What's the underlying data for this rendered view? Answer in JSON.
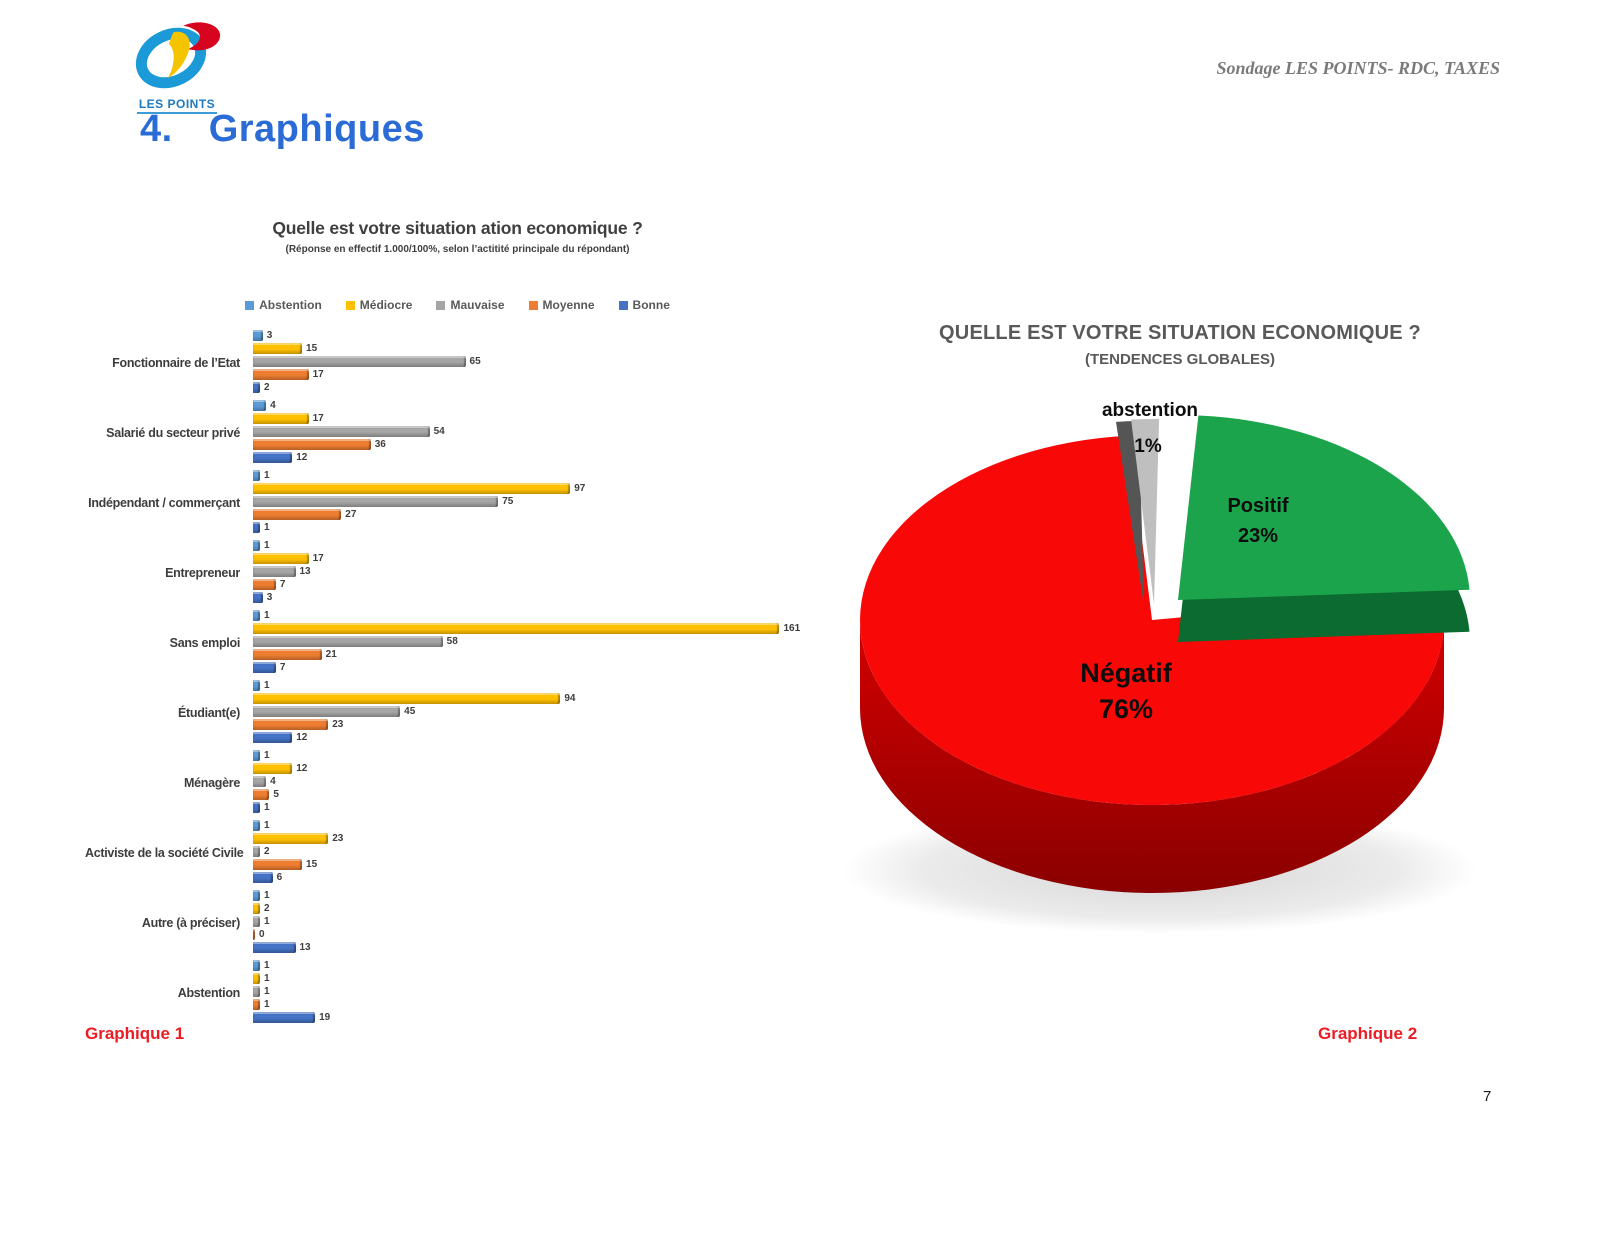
{
  "header": {
    "logo_text": "LES POINTS",
    "running_title": "Sondage LES POINTS- RDC, TAXES",
    "section_number": "4.",
    "section_title": "Graphiques"
  },
  "captions": {
    "graphique1": "Graphique 1",
    "graphique2": "Graphique 2"
  },
  "page_number": "7",
  "chart_data": [
    {
      "type": "bar",
      "orientation": "horizontal",
      "title": "Quelle est votre situation ation economique ?",
      "subtitle": "(Réponse en effectif 1.000/100%, selon l’actitité principale du répondant)",
      "legend_position": "top",
      "xlim": [
        0,
        170
      ],
      "categories": [
        "Fonctionnaire de l’Etat",
        "Salarié du secteur privé",
        "Indépendant / commerçant",
        "Entrepreneur",
        "Sans emploi",
        "Étudiant(e)",
        "Ménagère",
        "Activiste de la société Civile",
        "Autre (à préciser)",
        "Abstention"
      ],
      "series": [
        {
          "name": "Abstention",
          "color": "#5B9BD5",
          "values": [
            3,
            4,
            1,
            1,
            1,
            1,
            1,
            1,
            1,
            1
          ]
        },
        {
          "name": "Médiocre",
          "color": "#FFC000",
          "values": [
            15,
            17,
            97,
            17,
            161,
            94,
            12,
            23,
            2,
            1
          ]
        },
        {
          "name": "Mauvaise",
          "color": "#A5A5A5",
          "values": [
            65,
            54,
            75,
            13,
            58,
            45,
            4,
            2,
            1,
            1
          ]
        },
        {
          "name": "Moyenne",
          "color": "#ED7D31",
          "values": [
            17,
            36,
            27,
            7,
            21,
            23,
            5,
            15,
            0,
            1
          ]
        },
        {
          "name": "Bonne",
          "color": "#4472C4",
          "values": [
            2,
            12,
            1,
            3,
            7,
            12,
            1,
            6,
            13,
            19
          ]
        }
      ]
    },
    {
      "type": "pie",
      "style": "3d-exploded",
      "title": "QUELLE EST VOTRE SITUATION ECONOMIQUE ?",
      "subtitle": "(TENDENCES GLOBALES)",
      "slices": [
        {
          "label": "Négatif",
          "value_pct": 76,
          "pct_label": "76%",
          "color": "#F90808"
        },
        {
          "label": "Positif",
          "value_pct": 23,
          "pct_label": "23%",
          "color": "#1CA44C"
        },
        {
          "label": "abstention",
          "value_pct": 1,
          "pct_label": "1%",
          "color": "#BFBFBF"
        }
      ]
    }
  ]
}
